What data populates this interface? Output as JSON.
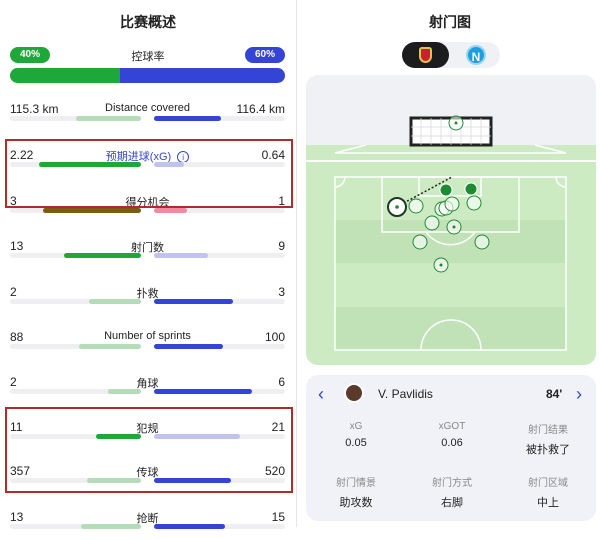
{
  "overview": {
    "title": "比赛概述",
    "possession": {
      "label": "控球率",
      "home": "40%",
      "away": "60%",
      "home_fraction": 0.4
    },
    "stats": [
      {
        "label": "Distance covered",
        "home": "115.3 km",
        "away": "116.4 km",
        "hf": 0.5,
        "af": 0.51,
        "hc": "#b5dcb9",
        "ac": "#3344d6"
      },
      {
        "label": "预期进球(xG)",
        "home": "2.22",
        "away": "0.64",
        "hf": 0.78,
        "af": 0.23,
        "hc": "#1fa83a",
        "ac": "#c0c4ec",
        "info": true
      },
      {
        "label": "得分机会",
        "home": "3",
        "away": "1",
        "hf": 0.75,
        "af": 0.25,
        "hc": "#7a5a14",
        "ac": "#f08aa0"
      },
      {
        "label": "射门数",
        "home": "13",
        "away": "9",
        "hf": 0.59,
        "af": 0.41,
        "hc": "#1fa83a",
        "ac": "#c0c4ec"
      },
      {
        "label": "扑救",
        "home": "2",
        "away": "3",
        "hf": 0.4,
        "af": 0.6,
        "hc": "#b5dcb9",
        "ac": "#3344d6"
      },
      {
        "label": "Number of sprints",
        "home": "88",
        "away": "100",
        "hf": 0.47,
        "af": 0.53,
        "hc": "#b5dcb9",
        "ac": "#3344d6"
      },
      {
        "label": "角球",
        "home": "2",
        "away": "6",
        "hf": 0.25,
        "af": 0.75,
        "hc": "#b5dcb9",
        "ac": "#3344d6"
      },
      {
        "label": "犯规",
        "home": "11",
        "away": "21",
        "hf": 0.34,
        "af": 0.66,
        "hc": "#1fa83a",
        "ac": "#c0c4ec"
      },
      {
        "label": "传球",
        "home": "357",
        "away": "520",
        "hf": 0.41,
        "af": 0.59,
        "hc": "#b5dcb9",
        "ac": "#3344d6"
      },
      {
        "label": "抢断",
        "home": "13",
        "away": "15",
        "hf": 0.46,
        "af": 0.54,
        "hc": "#b5dcb9",
        "ac": "#3344d6"
      }
    ]
  },
  "shotmap": {
    "title": "射门图",
    "teams": [
      "Benfica",
      "Napoli"
    ],
    "selected_team": "Benfica",
    "shot": {
      "player": "V. Pavlidis",
      "minute": "84'",
      "fields": [
        {
          "k": "xG",
          "v": "0.05"
        },
        {
          "k": "xGOT",
          "v": "0.06"
        },
        {
          "k": "射门结果",
          "v": "被扑救了"
        },
        {
          "k": "射门情景",
          "v": "助攻数"
        },
        {
          "k": "射门方式",
          "v": "右脚"
        },
        {
          "k": "射门区域",
          "v": "中上"
        }
      ]
    }
  },
  "colors": {
    "home": "#1fa83a",
    "away": "#3344d6",
    "highlight": "#b22a2a"
  }
}
